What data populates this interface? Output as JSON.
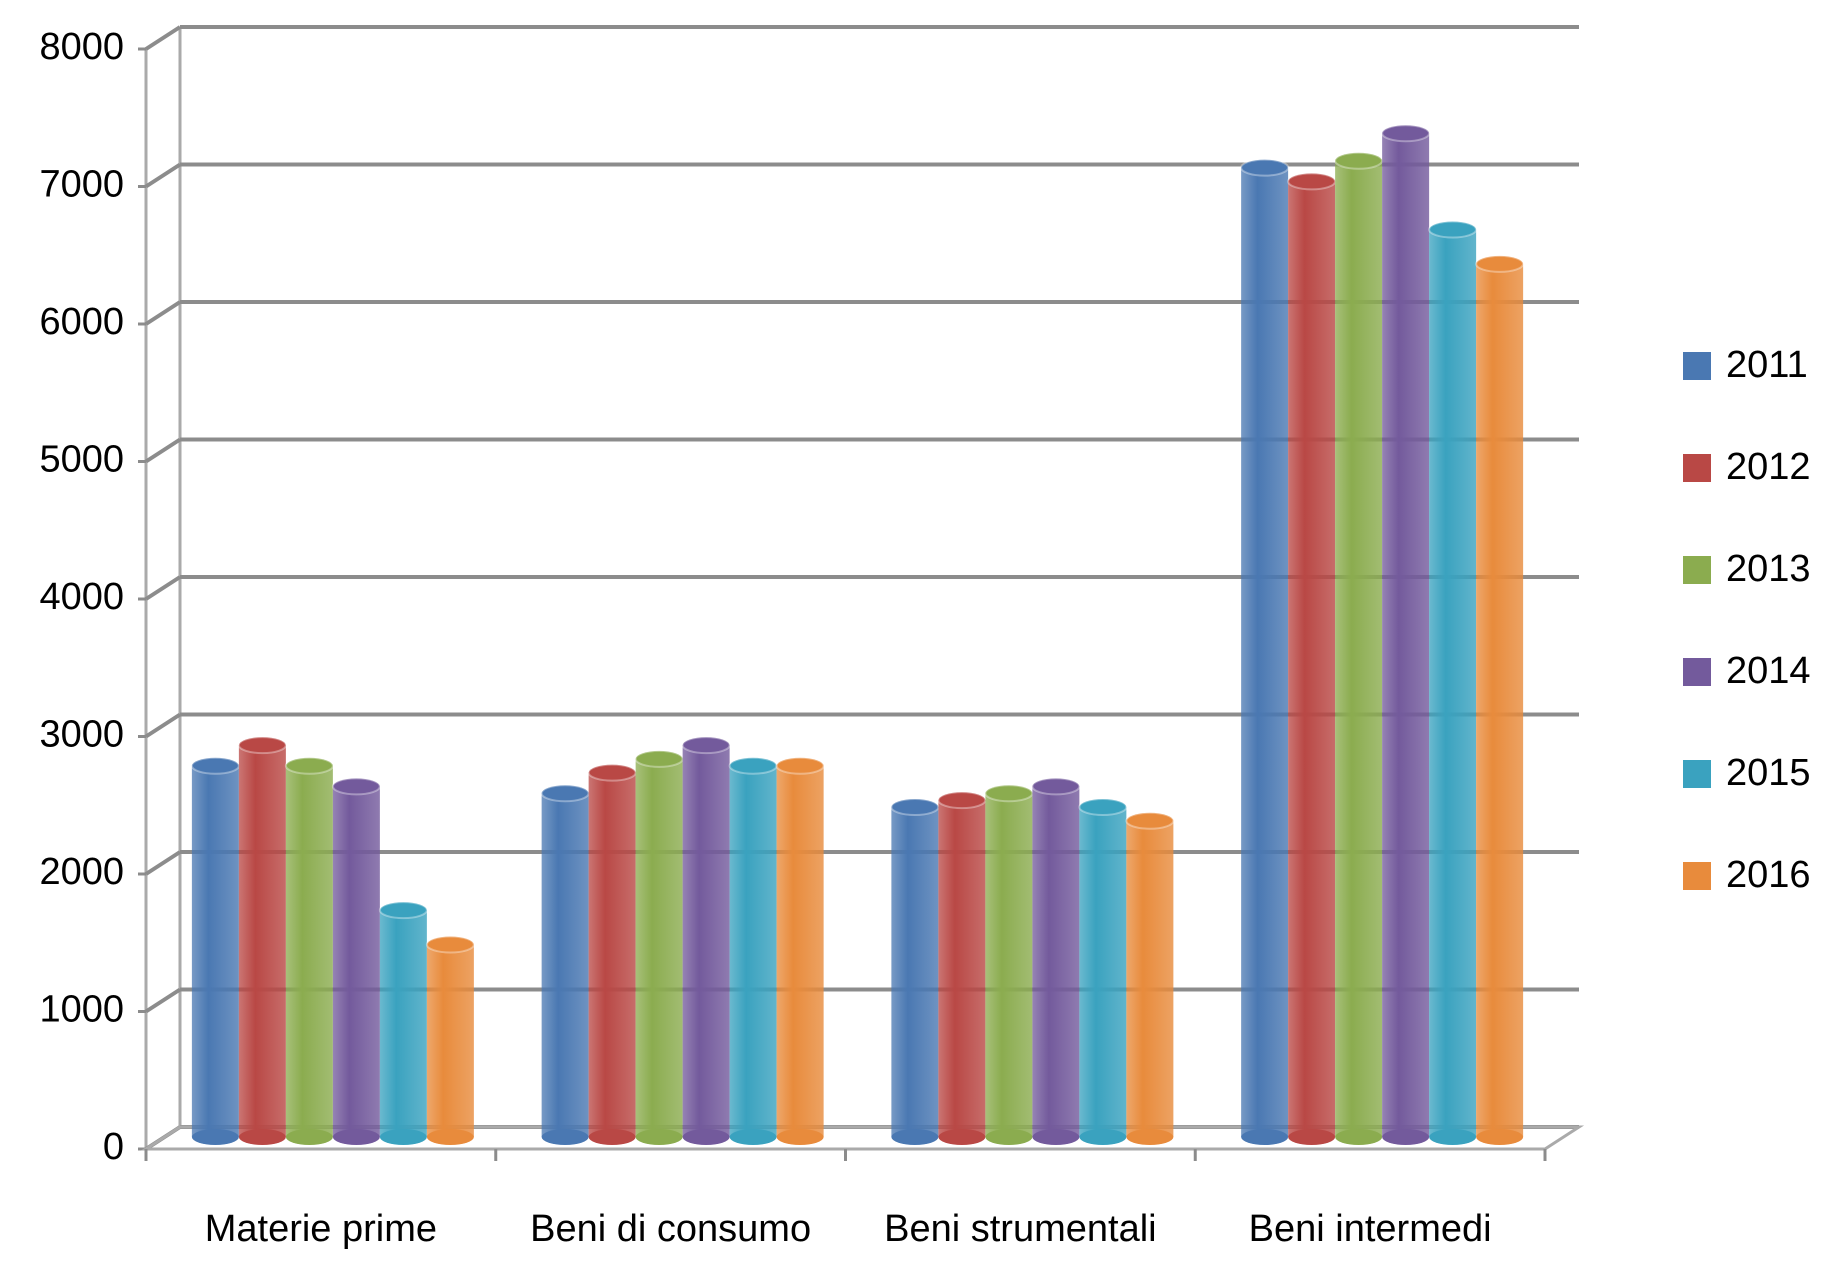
{
  "chart_data": {
    "type": "bar3d",
    "categories": [
      "Materie prime",
      "Beni di consumo",
      "Beni strumentali",
      "Beni intermedi"
    ],
    "series": [
      {
        "name": "2011",
        "color": "#4a78b2",
        "values": [
          2700,
          2500,
          2400,
          7050
        ]
      },
      {
        "name": "2012",
        "color": "#b94845",
        "values": [
          2850,
          2650,
          2450,
          6950
        ]
      },
      {
        "name": "2013",
        "color": "#8bac4f",
        "values": [
          2700,
          2750,
          2500,
          7100
        ]
      },
      {
        "name": "2014",
        "color": "#735a9c",
        "values": [
          2550,
          2850,
          2550,
          7300
        ]
      },
      {
        "name": "2015",
        "color": "#3aa2bf",
        "values": [
          1650,
          2700,
          2400,
          6600
        ]
      },
      {
        "name": "2016",
        "color": "#e88b3c",
        "values": [
          1400,
          2700,
          2300,
          6350
        ]
      }
    ],
    "ylim": [
      0,
      8000
    ],
    "yticks": [
      0,
      1000,
      2000,
      3000,
      4000,
      5000,
      6000,
      7000,
      8000
    ],
    "grid": true,
    "legend": "right"
  }
}
